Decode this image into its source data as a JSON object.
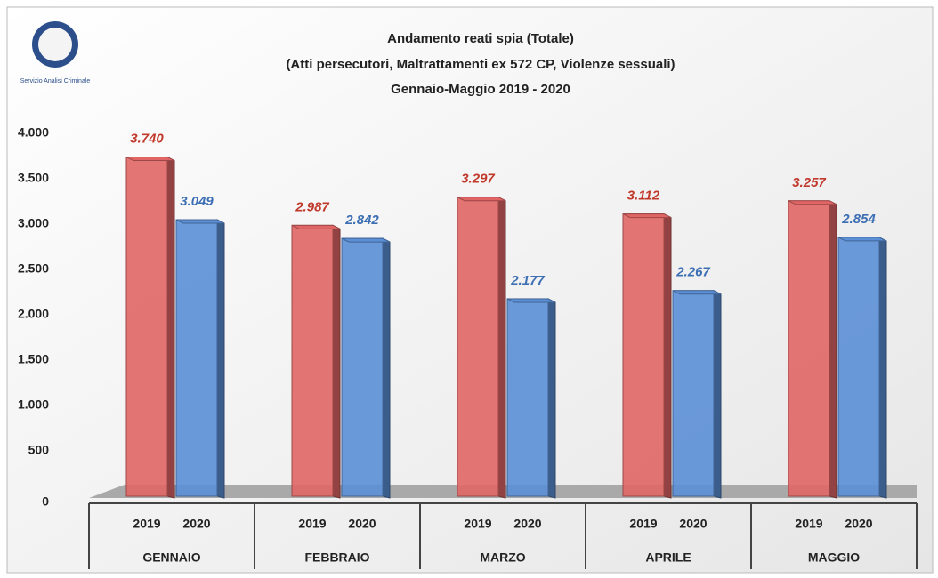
{
  "chart_data": {
    "type": "bar",
    "logo_text": "Servizio Analisi Criminale",
    "title": "Andamento reati spia (Totale)",
    "subtitle": "(Atti persecutori, Maltrattamenti ex 572 CP, Violenze sessuali)",
    "period": "Gennaio-Maggio 2019 - 2020",
    "categories": [
      "GENNAIO",
      "FEBBRAIO",
      "MARZO",
      "APRILE",
      "MAGGIO"
    ],
    "series": [
      {
        "name": "2019",
        "color": "#e06666",
        "values": [
          3740,
          2987,
          3297,
          3112,
          3257
        ],
        "value_labels": [
          "3.740",
          "2.987",
          "3.297",
          "3.112",
          "3.257"
        ],
        "label_color": "#c0392b"
      },
      {
        "name": "2020",
        "color": "#5b8fd6",
        "values": [
          3049,
          2842,
          2177,
          2267,
          2854
        ],
        "value_labels": [
          "3.049",
          "2.842",
          "2.177",
          "2.267",
          "2.854"
        ],
        "label_color": "#3d6fb4"
      }
    ],
    "ylim": [
      0,
      4000
    ],
    "yticks": [
      0,
      500,
      {
        "value": 1000,
        "label": "1.000"
      },
      {
        "value": 1500,
        "label": "1.500"
      },
      {
        "value": 2000,
        "label": "2.000"
      },
      {
        "value": 2500,
        "label": "2.500"
      },
      {
        "value": 3000,
        "label": "3.000"
      },
      {
        "value": 3500,
        "label": "3.500"
      },
      {
        "value": 4000,
        "label": "4.000"
      }
    ]
  }
}
